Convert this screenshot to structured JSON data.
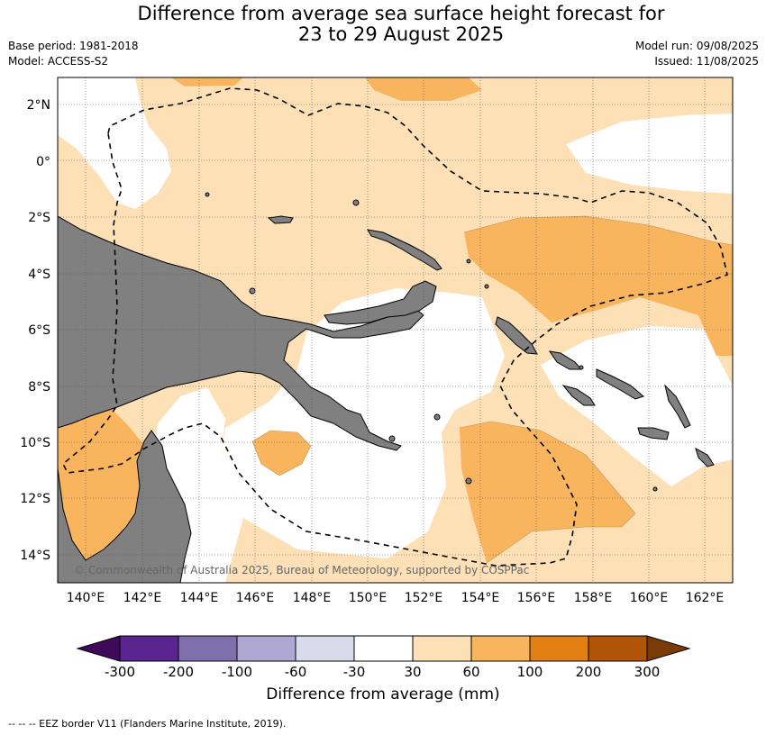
{
  "title_line1": "Difference from average sea surface height forecast for",
  "title_line2": "23 to 29 August 2025",
  "base_period": "Base period: 1981-2018",
  "model": "Model: ACCESS-S2",
  "model_run": "Model run: 09/08/2025",
  "issued": "Issued: 11/08/2025",
  "copyright": "© Commonwealth of Australia 2025, Bureau of Meteorology, supported by COSPPac",
  "lat_labels": [
    "2°N",
    "0°",
    "2°S",
    "4°S",
    "6°S",
    "8°S",
    "10°S",
    "12°S",
    "14°S"
  ],
  "lon_labels": [
    "140°E",
    "142°E",
    "144°E",
    "146°E",
    "148°E",
    "150°E",
    "152°E",
    "154°E",
    "156°E",
    "158°E",
    "160°E",
    "162°E"
  ],
  "colorbar": {
    "tick_labels": [
      "-300",
      "-200",
      "-100",
      "-60",
      "-30",
      "30",
      "60",
      "100",
      "200",
      "300"
    ],
    "colors": [
      "#3f0a5a",
      "#5a2590",
      "#7f70ad",
      "#afa8d2",
      "#d8dbea",
      "#ffffff",
      "#fde0b6",
      "#f9b55e",
      "#e17f12",
      "#b05507",
      "#7b3b06"
    ],
    "label": "Difference from average (mm)"
  },
  "map_colors": {
    "land": "#808080",
    "light_orange": "#fde0b6",
    "orange": "#f9b55e",
    "dark_orange": "#e17f12"
  },
  "eez_note": "--  --  -- EEZ border V11 (Flanders Marine Institute, 2019)."
}
